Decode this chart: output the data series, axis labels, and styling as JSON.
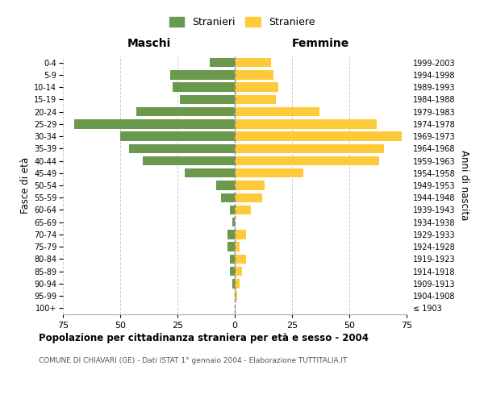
{
  "age_groups": [
    "100+",
    "95-99",
    "90-94",
    "85-89",
    "80-84",
    "75-79",
    "70-74",
    "65-69",
    "60-64",
    "55-59",
    "50-54",
    "45-49",
    "40-44",
    "35-39",
    "30-34",
    "25-29",
    "20-24",
    "15-19",
    "10-14",
    "5-9",
    "0-4"
  ],
  "birth_years": [
    "≤ 1903",
    "1904-1908",
    "1909-1913",
    "1914-1918",
    "1919-1923",
    "1924-1928",
    "1929-1933",
    "1934-1938",
    "1939-1943",
    "1944-1948",
    "1949-1953",
    "1954-1958",
    "1959-1963",
    "1964-1968",
    "1969-1973",
    "1974-1978",
    "1979-1983",
    "1984-1988",
    "1989-1993",
    "1994-1998",
    "1999-2003"
  ],
  "males": [
    0,
    0,
    1,
    2,
    2,
    3,
    3,
    1,
    2,
    6,
    8,
    22,
    40,
    46,
    50,
    70,
    43,
    24,
    27,
    28,
    11
  ],
  "females": [
    0,
    1,
    2,
    3,
    5,
    2,
    5,
    0,
    7,
    12,
    13,
    30,
    63,
    65,
    73,
    62,
    37,
    18,
    19,
    17,
    16
  ],
  "male_color": "#6a994e",
  "female_color": "#ffca3a",
  "male_label": "Stranieri",
  "female_label": "Straniere",
  "xlabel_left": "Maschi",
  "xlabel_right": "Femmine",
  "ylabel_left": "Fasce di età",
  "ylabel_right": "Anni di nascita",
  "title": "Popolazione per cittadinanza straniera per età e sesso - 2004",
  "subtitle": "COMUNE DI CHIAVARI (GE) - Dati ISTAT 1° gennaio 2004 - Elaborazione TUTTITALIA.IT",
  "xlim": 75,
  "background_color": "#ffffff",
  "grid_color": "#cccccc"
}
